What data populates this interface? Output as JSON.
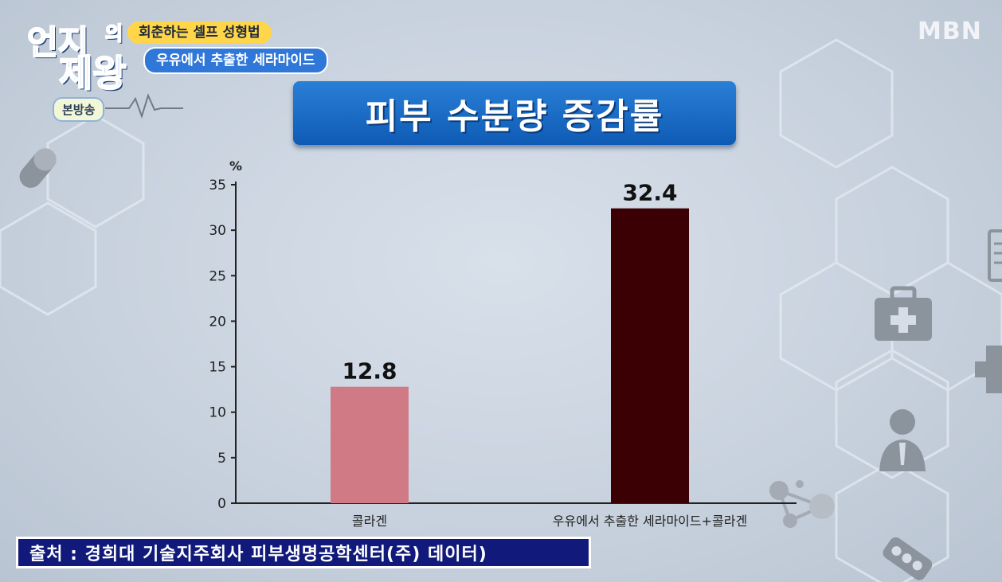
{
  "show": {
    "logo_part1": "언지",
    "logo_part2": "의",
    "logo_part3": "제왕",
    "badge": "본방송",
    "subtitle_1": "회춘하는 셀프 성형법",
    "subtitle_2": "우유에서 추출한 세라마이드"
  },
  "channel": "MBN",
  "source_caption": "출처 : 경희대 기술지주회사 피부생명공학센터(주) 데이터)",
  "icons": [
    "pill-icon",
    "medical-kit-icon",
    "doctor-icon",
    "clipboard-icon",
    "molecule-icon",
    "pill-pack-icon",
    "plus-icon"
  ],
  "colors": {
    "bar_1": "#d07a86",
    "bar_2": "#3a0004",
    "title_bg": "#1a6cc6",
    "source_bg": "#111a7a",
    "subtitle_yellow": "#ffd54a",
    "subtitle_blue": "#2f77d8"
  },
  "chart_data": {
    "type": "bar",
    "title": "피부 수분량 증감률",
    "ylabel": "%",
    "xlabel": "",
    "categories": [
      "콜라겐",
      "우유에서 추출한 세라마이드+콜라겐"
    ],
    "values": [
      12.8,
      32.4
    ],
    "value_labels": [
      "12.8",
      "32.4"
    ],
    "ylim": [
      0,
      35
    ],
    "yticks": [
      0,
      5,
      10,
      15,
      20,
      25,
      30,
      35
    ],
    "grid": false,
    "legend": "none"
  }
}
